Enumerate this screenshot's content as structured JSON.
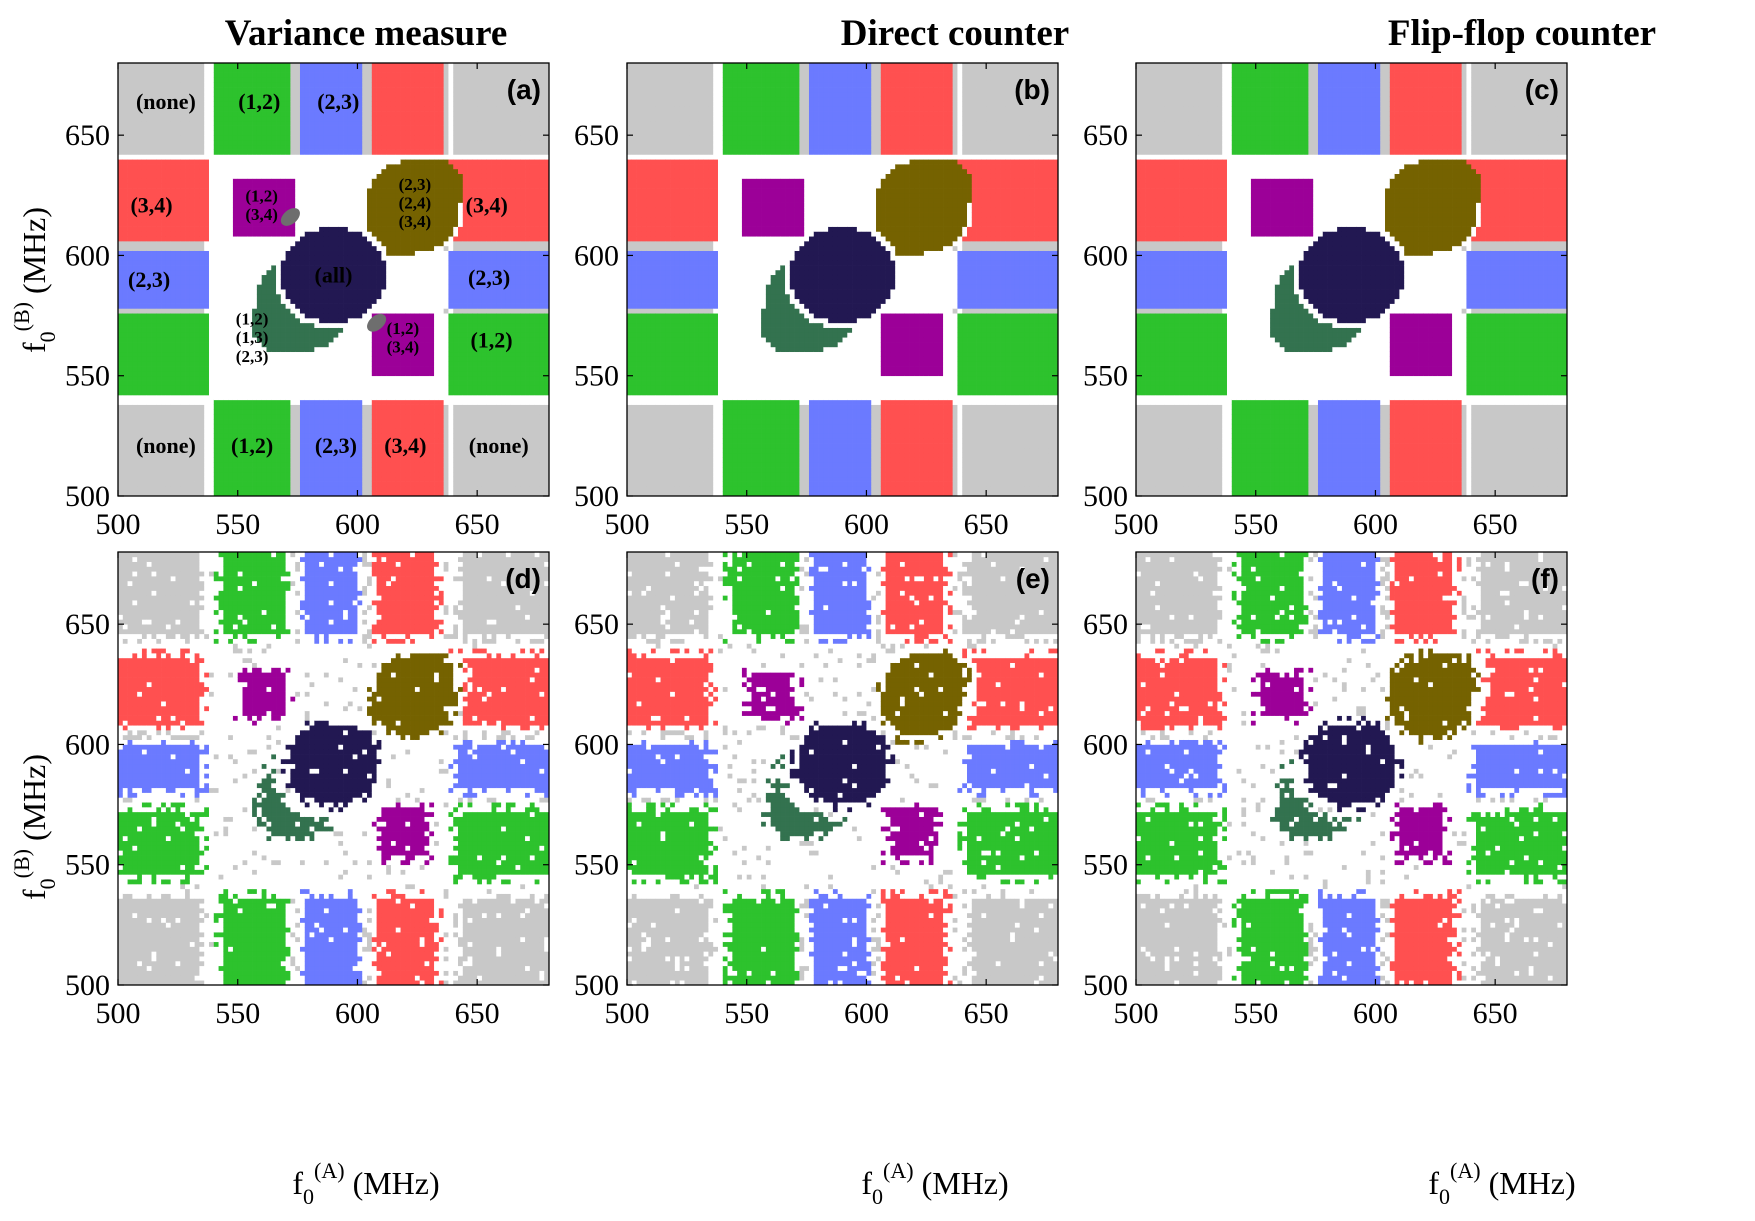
{
  "column_titles": [
    "Variance measure",
    "Direct counter",
    "Flip-flop counter"
  ],
  "colors": {
    "none": "#c8c8c8",
    "pair12": "#2dc22d",
    "pair23": "#6b7aff",
    "pair34": "#ff5050",
    "triple_12_34": "#9c0098",
    "triple_23_24_34": "#756200",
    "triple_12_13_23": "#33724f",
    "all": "#221852",
    "ambiguous": "#6e6e6e",
    "gap": "#ffffff"
  },
  "chart_data": [
    {
      "panel": "(a)",
      "type": "heatmap",
      "title": "Variance measure",
      "row": "top",
      "xlabel": "f0(A) (MHz)",
      "ylabel": "f0(B) (MHz)",
      "xlim": [
        500,
        680
      ],
      "ylim": [
        500,
        680
      ],
      "xticks": [
        500,
        550,
        600,
        650
      ],
      "yticks": [
        500,
        550,
        600,
        650
      ],
      "noisy": false
    },
    {
      "panel": "(b)",
      "type": "heatmap",
      "title": "Direct counter",
      "row": "top",
      "xlabel": "f0(A) (MHz)",
      "ylabel": "f0(B) (MHz)",
      "xlim": [
        500,
        680
      ],
      "ylim": [
        500,
        680
      ],
      "xticks": [
        500,
        550,
        600,
        650
      ],
      "yticks": [
        500,
        550,
        600,
        650
      ],
      "noisy": false
    },
    {
      "panel": "(c)",
      "type": "heatmap",
      "title": "Flip-flop counter",
      "row": "top",
      "xlabel": "f0(A) (MHz)",
      "ylabel": "f0(B) (MHz)",
      "xlim": [
        500,
        680
      ],
      "ylim": [
        500,
        680
      ],
      "xticks": [
        500,
        550,
        600,
        650
      ],
      "yticks": [
        500,
        550,
        600,
        650
      ],
      "noisy": false
    },
    {
      "panel": "(d)",
      "type": "heatmap",
      "title": "Variance measure",
      "row": "bottom",
      "xlabel": "f0(A) (MHz)",
      "ylabel": "f0(B) (MHz)",
      "xlim": [
        500,
        680
      ],
      "ylim": [
        500,
        680
      ],
      "xticks": [
        500,
        550,
        600,
        650
      ],
      "yticks": [
        500,
        550,
        600,
        650
      ],
      "noisy": true
    },
    {
      "panel": "(e)",
      "type": "heatmap",
      "title": "Direct counter",
      "row": "bottom",
      "xlabel": "f0(A) (MHz)",
      "ylabel": "f0(B) (MHz)",
      "xlim": [
        500,
        680
      ],
      "ylim": [
        500,
        680
      ],
      "xticks": [
        500,
        550,
        600,
        650
      ],
      "yticks": [
        500,
        550,
        600,
        650
      ],
      "noisy": true
    },
    {
      "panel": "(f)",
      "type": "heatmap",
      "title": "Flip-flop counter",
      "row": "bottom",
      "xlabel": "f0(A) (MHz)",
      "ylabel": "f0(B) (MHz)",
      "xlim": [
        500,
        680
      ],
      "ylim": [
        500,
        680
      ],
      "xticks": [
        500,
        550,
        600,
        650
      ],
      "yticks": [
        500,
        550,
        600,
        650
      ],
      "noisy": true
    }
  ],
  "region_labels": [
    {
      "lines": [
        "(none)"
      ],
      "fA": 520,
      "fB": 664
    },
    {
      "lines": [
        "(1,2)"
      ],
      "fA": 559,
      "fB": 664
    },
    {
      "lines": [
        "(2,3)"
      ],
      "fA": 592,
      "fB": 664
    },
    {
      "lines": [
        "(1,2)",
        "(3,4)"
      ],
      "fA": 560,
      "fB": 621
    },
    {
      "lines": [
        "(2,3)",
        "(2,4)",
        "(3,4)"
      ],
      "fA": 624,
      "fB": 622
    },
    {
      "lines": [
        "(3,4)"
      ],
      "fA": 514,
      "fB": 621
    },
    {
      "lines": [
        "(3,4)"
      ],
      "fA": 654,
      "fB": 621
    },
    {
      "lines": [
        "(2,3)"
      ],
      "fA": 513,
      "fB": 590
    },
    {
      "lines": [
        "(all)"
      ],
      "fA": 590,
      "fB": 592
    },
    {
      "lines": [
        "(2,3)"
      ],
      "fA": 655,
      "fB": 591
    },
    {
      "lines": [
        "(1,2)",
        "(1,3)",
        "(2,3)"
      ],
      "fA": 556,
      "fB": 566
    },
    {
      "lines": [
        "(1,2)",
        "(3,4)"
      ],
      "fA": 619,
      "fB": 566
    },
    {
      "lines": [
        "(1,2)"
      ],
      "fA": 656,
      "fB": 565
    },
    {
      "lines": [
        "(none)"
      ],
      "fA": 520,
      "fB": 521
    },
    {
      "lines": [
        "(1,2)"
      ],
      "fA": 556,
      "fB": 521
    },
    {
      "lines": [
        "(2,3)"
      ],
      "fA": 591,
      "fB": 521
    },
    {
      "lines": [
        "(3,4)"
      ],
      "fA": 620,
      "fB": 521
    },
    {
      "lines": [
        "(none)"
      ],
      "fA": 659,
      "fB": 521
    }
  ]
}
